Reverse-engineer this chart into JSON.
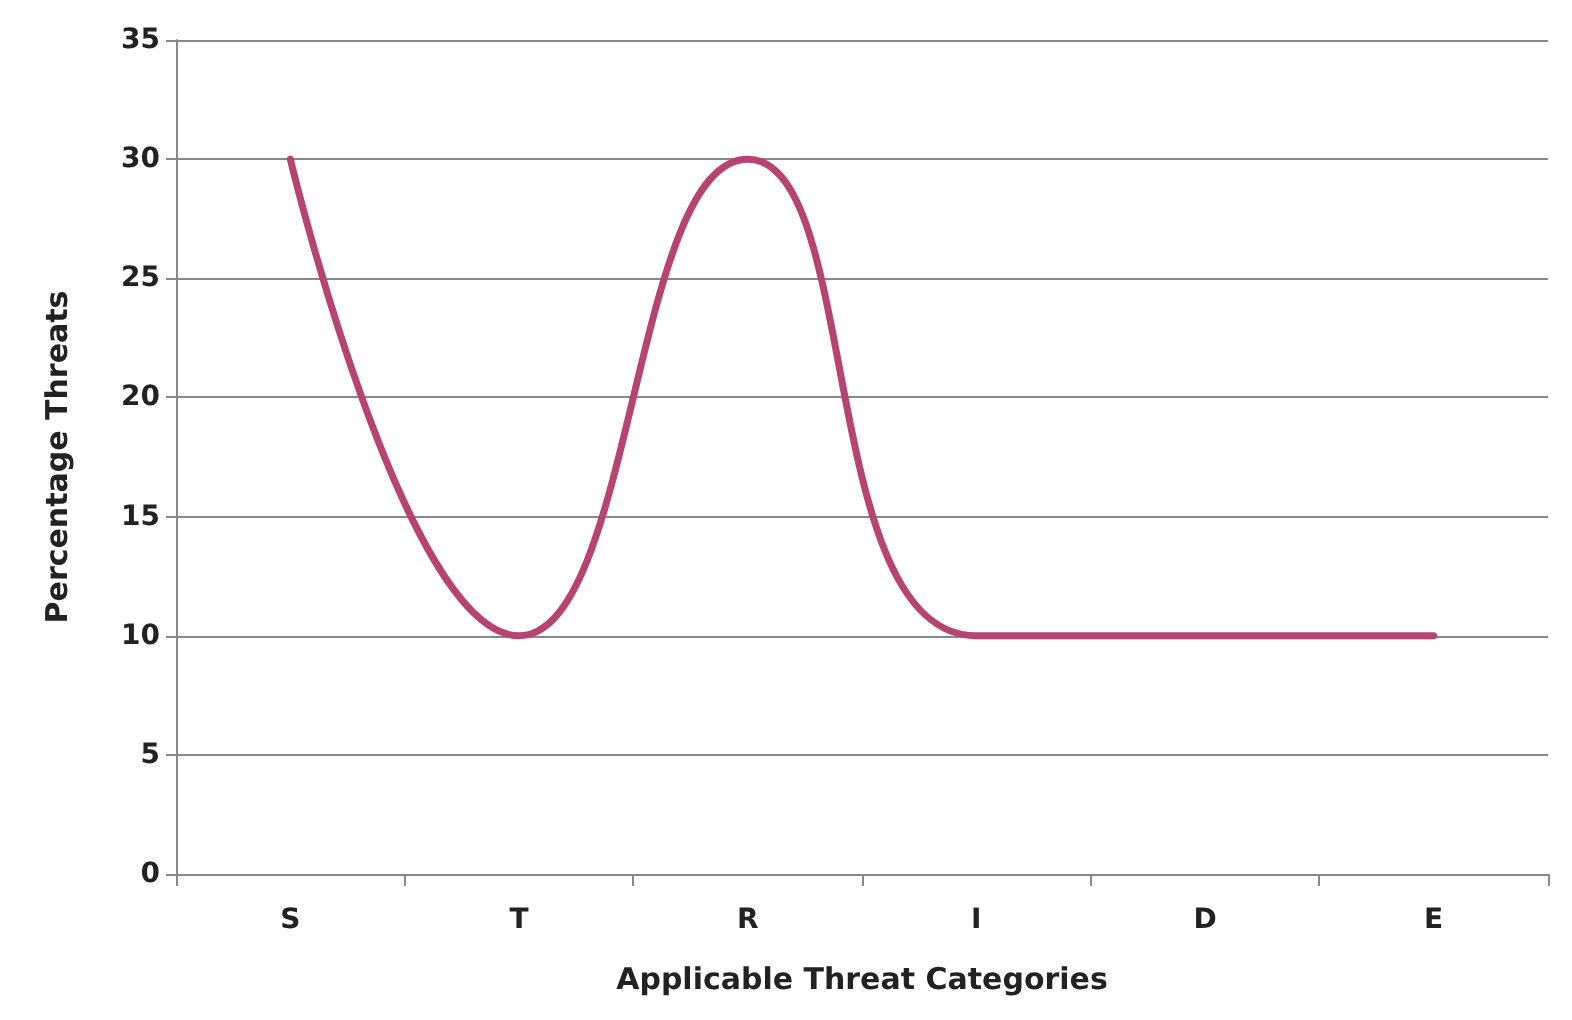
{
  "chart_data": {
    "type": "line",
    "xlabel": "Applicable Threat Categories",
    "ylabel": "Percentage Threats",
    "categories": [
      "S",
      "T",
      "R",
      "I",
      "D",
      "E"
    ],
    "series": [
      {
        "color": "#b5446e",
        "values": [
          30,
          10,
          30,
          10,
          10,
          10
        ]
      }
    ],
    "ylim": [
      0,
      35
    ],
    "yticks": [
      0,
      5,
      10,
      15,
      20,
      25,
      30,
      35
    ],
    "grid": "y",
    "marker": "none",
    "line_style": "solid"
  }
}
